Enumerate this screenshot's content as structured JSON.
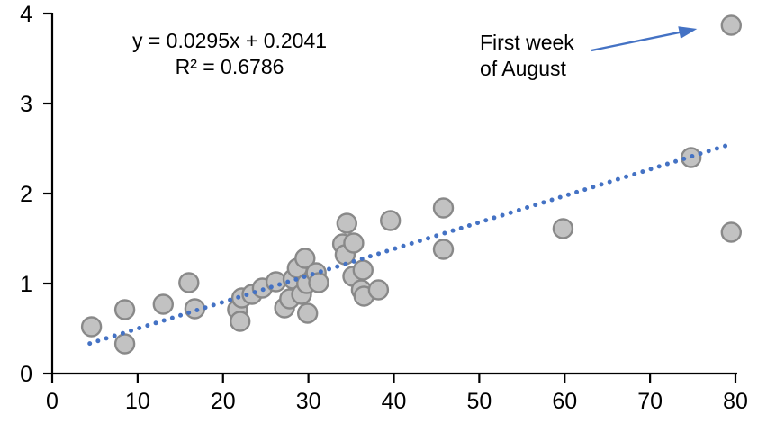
{
  "chart_data": {
    "type": "scatter",
    "title": "",
    "xlabel": "",
    "ylabel": "",
    "xlim": [
      0,
      80
    ],
    "ylim": [
      0,
      4
    ],
    "x_ticks": [
      0,
      10,
      20,
      30,
      40,
      50,
      60,
      70,
      80
    ],
    "y_ticks": [
      0,
      1,
      2,
      3,
      4
    ],
    "grid": false,
    "legend": "none",
    "points": [
      [
        4.6,
        0.52
      ],
      [
        8.5,
        0.71
      ],
      [
        8.5,
        0.33
      ],
      [
        13.0,
        0.77
      ],
      [
        16.0,
        1.01
      ],
      [
        16.7,
        0.72
      ],
      [
        21.7,
        0.71
      ],
      [
        22.0,
        0.58
      ],
      [
        22.2,
        0.84
      ],
      [
        23.4,
        0.88
      ],
      [
        24.6,
        0.95
      ],
      [
        26.2,
        1.02
      ],
      [
        27.2,
        0.73
      ],
      [
        27.8,
        0.83
      ],
      [
        28.2,
        1.05
      ],
      [
        28.7,
        1.17
      ],
      [
        29.2,
        0.88
      ],
      [
        29.6,
        1.28
      ],
      [
        29.8,
        1.0
      ],
      [
        29.9,
        0.67
      ],
      [
        30.9,
        1.12
      ],
      [
        31.2,
        1.01
      ],
      [
        34.0,
        1.44
      ],
      [
        34.3,
        1.32
      ],
      [
        34.5,
        1.67
      ],
      [
        35.2,
        1.08
      ],
      [
        35.3,
        1.45
      ],
      [
        36.2,
        0.93
      ],
      [
        36.4,
        1.15
      ],
      [
        36.5,
        0.86
      ],
      [
        38.2,
        0.93
      ],
      [
        39.6,
        1.7
      ],
      [
        45.8,
        1.84
      ],
      [
        45.8,
        1.38
      ],
      [
        59.8,
        1.61
      ],
      [
        74.8,
        2.4
      ],
      [
        79.5,
        1.57
      ],
      [
        79.5,
        3.87
      ]
    ],
    "trendline": {
      "style": "dotted",
      "slope": 0.0295,
      "intercept": 0.2041,
      "x_start": 4.4,
      "x_end": 79,
      "equation_label": "y = 0.0295x + 0.2041",
      "r2_label": "R² = 0.6786"
    },
    "annotation": {
      "line1": "First week",
      "line2": "of August",
      "target_point": [
        79.5,
        3.87
      ]
    },
    "colors": {
      "marker_fill": "#c2c2c2",
      "marker_stroke": "#898989",
      "trendline": "#4472c4",
      "arrow": "#4472c4",
      "axis": "#000000",
      "text": "#000000",
      "background": "#ffffff"
    }
  }
}
